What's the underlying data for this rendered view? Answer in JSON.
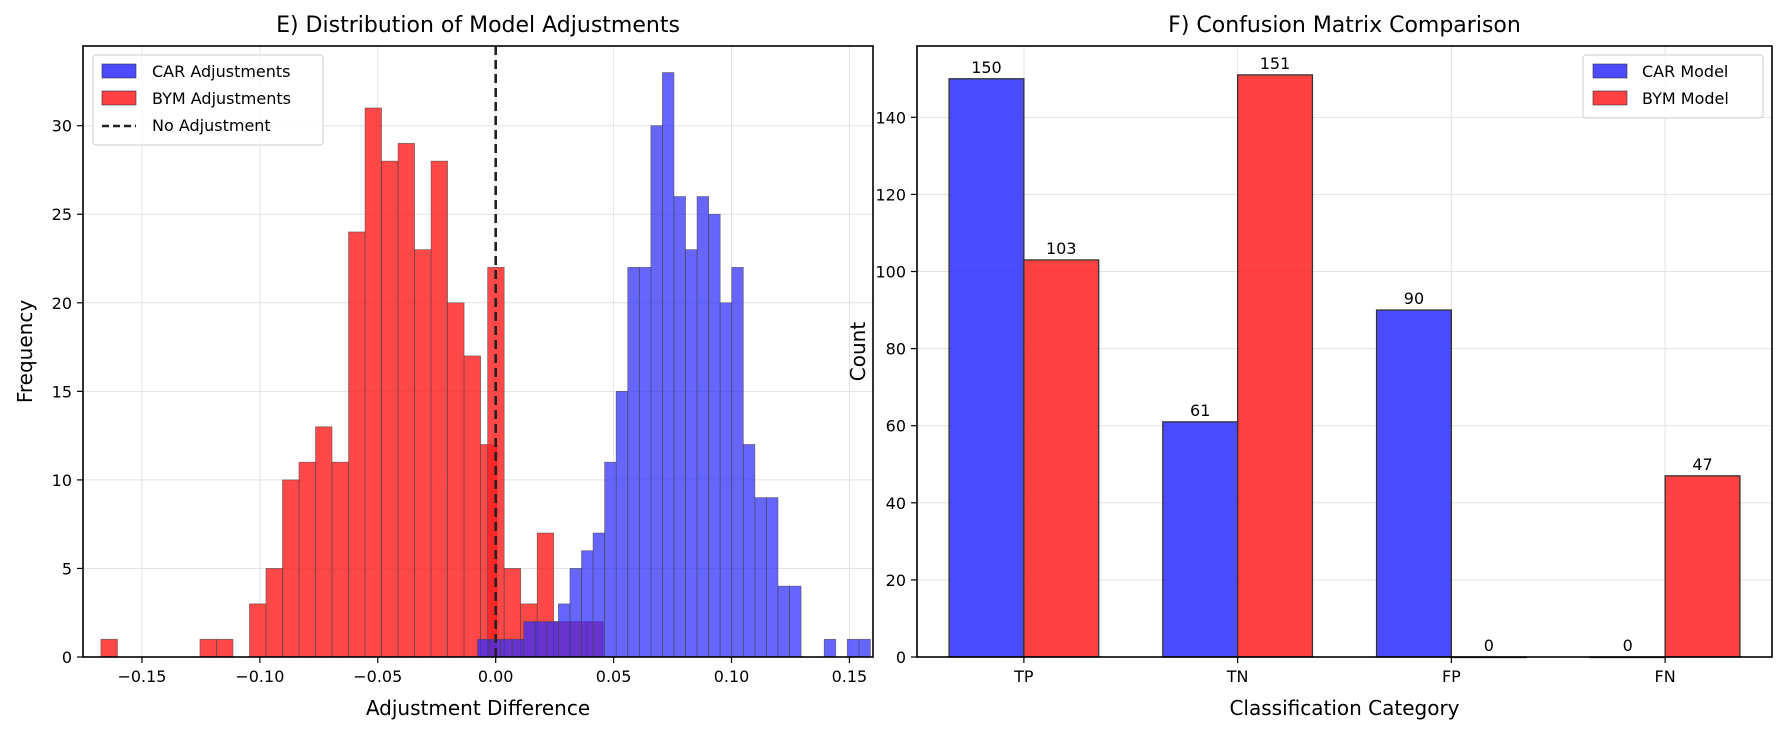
{
  "chart_data": [
    {
      "type": "histogram",
      "title": "E) Distribution of Model Adjustments",
      "xlabel": "Adjustment Difference",
      "ylabel": "Frequency",
      "xlim": [
        -0.175,
        0.16
      ],
      "ylim": [
        0,
        34.5
      ],
      "xticks": [
        -0.15,
        -0.1,
        -0.05,
        0.0,
        0.05,
        0.1,
        0.15
      ],
      "xtick_labels": [
        "−0.15",
        "−0.10",
        "−0.05",
        "0.00",
        "0.05",
        "0.10",
        "0.15"
      ],
      "yticks": [
        0,
        5,
        10,
        15,
        20,
        25,
        30
      ],
      "ytick_labels": [
        "0",
        "5",
        "10",
        "15",
        "20",
        "25",
        "30"
      ],
      "grid": true,
      "legend_position": "top-left",
      "reference_line": {
        "x": 0.0,
        "style": "dashed",
        "color": "#222222",
        "label": "No Adjustment"
      },
      "series": [
        {
          "name": "BYM Adjustments",
          "color": "#ff2020",
          "bin_width": 0.007,
          "bins": [
            {
              "x0": -0.1674,
              "count": 1
            },
            {
              "x0": -0.1254,
              "count": 1
            },
            {
              "x0": -0.1184,
              "count": 1
            },
            {
              "x0": -0.1044,
              "count": 3
            },
            {
              "x0": -0.0974,
              "count": 5
            },
            {
              "x0": -0.0904,
              "count": 10
            },
            {
              "x0": -0.0834,
              "count": 11
            },
            {
              "x0": -0.0764,
              "count": 13
            },
            {
              "x0": -0.0694,
              "count": 11
            },
            {
              "x0": -0.0624,
              "count": 24
            },
            {
              "x0": -0.0554,
              "count": 31
            },
            {
              "x0": -0.0484,
              "count": 28
            },
            {
              "x0": -0.0414,
              "count": 29
            },
            {
              "x0": -0.0344,
              "count": 23
            },
            {
              "x0": -0.0274,
              "count": 28
            },
            {
              "x0": -0.0204,
              "count": 20
            },
            {
              "x0": -0.0134,
              "count": 17
            },
            {
              "x0": -0.0064,
              "count": 12
            },
            {
              "x0": -0.0034,
              "count": 22
            },
            {
              "x0": 0.0036,
              "count": 5
            },
            {
              "x0": 0.0106,
              "count": 3
            },
            {
              "x0": 0.0176,
              "count": 7
            },
            {
              "x0": 0.0246,
              "count": 2
            },
            {
              "x0": 0.0316,
              "count": 2
            },
            {
              "x0": 0.0386,
              "count": 2
            }
          ]
        },
        {
          "name": "CAR Adjustments",
          "color": "#2b2bff",
          "bin_width": 0.0049,
          "bins": [
            {
              "x0": -0.0077,
              "count": 1
            },
            {
              "x0": -0.0028,
              "count": 1
            },
            {
              "x0": 0.0021,
              "count": 1
            },
            {
              "x0": 0.007,
              "count": 1
            },
            {
              "x0": 0.0119,
              "count": 2
            },
            {
              "x0": 0.0168,
              "count": 2
            },
            {
              "x0": 0.0217,
              "count": 2
            },
            {
              "x0": 0.0266,
              "count": 3
            },
            {
              "x0": 0.0315,
              "count": 5
            },
            {
              "x0": 0.0364,
              "count": 6
            },
            {
              "x0": 0.0413,
              "count": 7
            },
            {
              "x0": 0.0462,
              "count": 11
            },
            {
              "x0": 0.0511,
              "count": 15
            },
            {
              "x0": 0.056,
              "count": 22
            },
            {
              "x0": 0.0609,
              "count": 22
            },
            {
              "x0": 0.0658,
              "count": 30
            },
            {
              "x0": 0.0707,
              "count": 33
            },
            {
              "x0": 0.0756,
              "count": 26
            },
            {
              "x0": 0.0805,
              "count": 23
            },
            {
              "x0": 0.0854,
              "count": 26
            },
            {
              "x0": 0.0903,
              "count": 25
            },
            {
              "x0": 0.0952,
              "count": 20
            },
            {
              "x0": 0.1001,
              "count": 22
            },
            {
              "x0": 0.105,
              "count": 12
            },
            {
              "x0": 0.1099,
              "count": 9
            },
            {
              "x0": 0.1148,
              "count": 9
            },
            {
              "x0": 0.1197,
              "count": 4
            },
            {
              "x0": 0.1246,
              "count": 4
            },
            {
              "x0": 0.1393,
              "count": 1
            },
            {
              "x0": 0.1491,
              "count": 1
            },
            {
              "x0": 0.154,
              "count": 1
            }
          ]
        }
      ],
      "legend": [
        "CAR Adjustments",
        "BYM Adjustments",
        "No Adjustment"
      ]
    },
    {
      "type": "bar",
      "title": "F) Confusion Matrix Comparison",
      "xlabel": "Classification Category",
      "ylabel": "Count",
      "categories": [
        "TP",
        "TN",
        "FP",
        "FN"
      ],
      "ylim": [
        0,
        158.5
      ],
      "yticks": [
        0,
        20,
        40,
        60,
        80,
        100,
        120,
        140
      ],
      "grid": true,
      "legend_position": "top-right",
      "series": [
        {
          "name": "CAR Model",
          "color": "#2b2bff",
          "values": [
            150,
            61,
            90,
            0
          ]
        },
        {
          "name": "BYM Model",
          "color": "#ff2020",
          "values": [
            103,
            151,
            0,
            47
          ]
        }
      ]
    }
  ]
}
